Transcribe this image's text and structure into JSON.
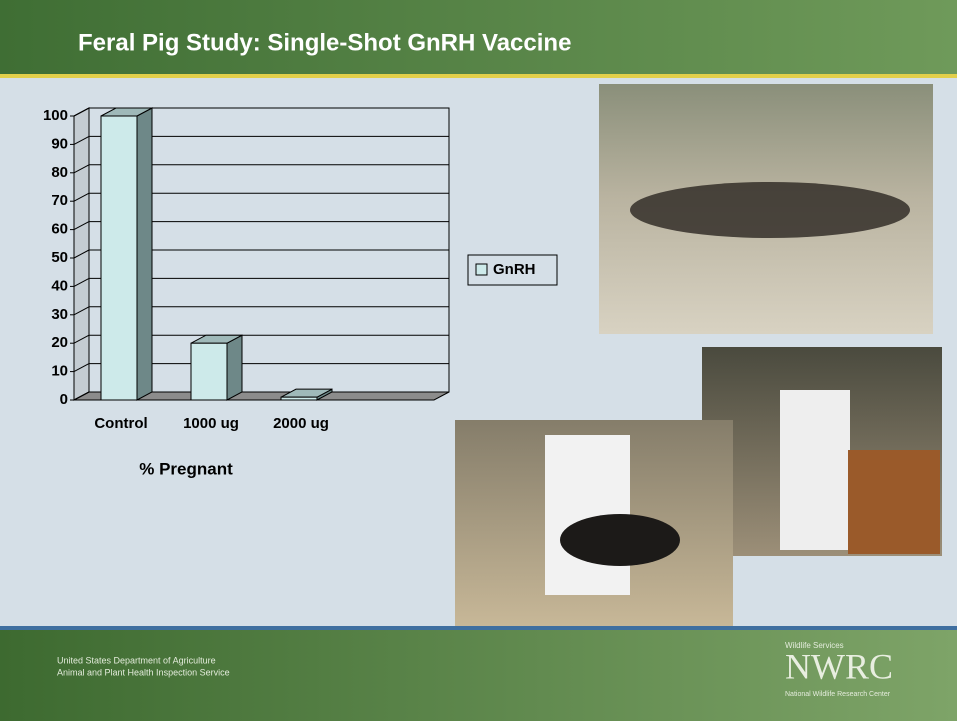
{
  "slide_title": "Feral Pig Study:  Single-Shot GnRH Vaccine",
  "footer": {
    "org_lines": [
      "United States Department of Agriculture",
      "Animal and Plant Health Inspection Service"
    ],
    "logo": {
      "small": "Wildlife Services",
      "main": "NWRC",
      "sub": "National Wildlife Research Center"
    }
  },
  "chart_data": {
    "type": "bar",
    "x_label": "% Pregnant",
    "categories": [
      "Control",
      "1000 ug",
      "2000 ug"
    ],
    "series": [
      {
        "name": "GnRH",
        "color": "#cdeaea",
        "values": [
          100,
          20,
          1
        ]
      }
    ],
    "ylim": [
      0,
      100
    ],
    "yticks": [
      0,
      10,
      20,
      30,
      40,
      50,
      60,
      70,
      80,
      90,
      100
    ],
    "grid": true
  }
}
